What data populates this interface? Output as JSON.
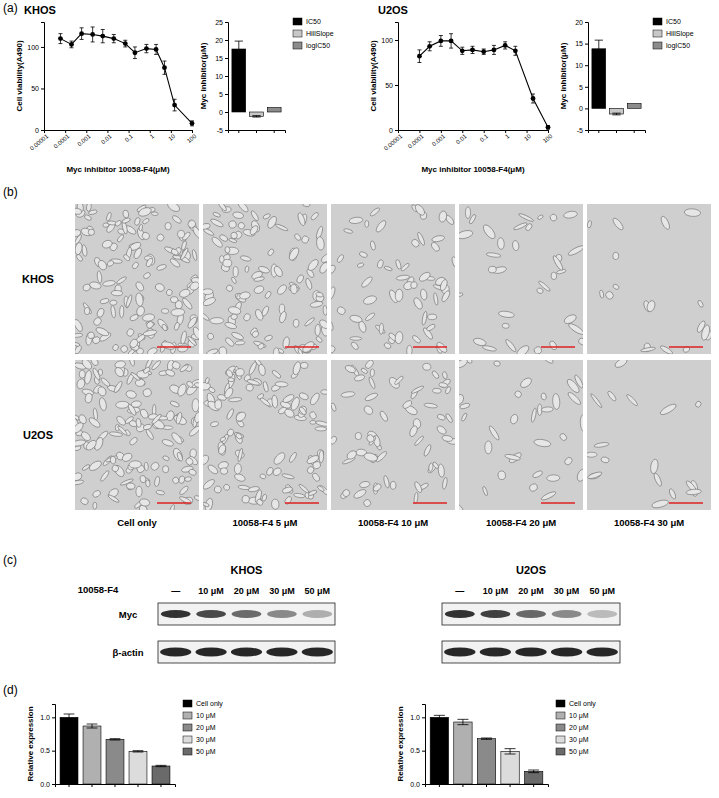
{
  "figure": {
    "panel_labels": [
      "(a)",
      "(b)",
      "(c)",
      "(d)"
    ],
    "micrographs": {
      "rows": [
        "KHOS",
        "U2OS"
      ],
      "columns": [
        "Cell only",
        "10058-F4 5 μM",
        "10058-F4 10 μM",
        "10058-F4 20 μM",
        "10058-F4 30 μM"
      ]
    },
    "blots": {
      "treatment": "10058-F4",
      "lanes": [
        "—",
        "10 μM",
        "20 μM",
        "30 μM",
        "50 μM"
      ],
      "rows": [
        "Myc",
        "β-actin"
      ],
      "cell_lines": [
        "KHOS",
        "U2OS"
      ]
    }
  },
  "chart_data": [
    {
      "type": "line",
      "title": "KHOS",
      "xlabel": "Myc inhibitor 10058-F4(μM)",
      "ylabel": "Cell viability(A490)",
      "log": "x",
      "x": [
        6e-05,
        0.0002,
        0.0006,
        0.002,
        0.006,
        0.02,
        0.07,
        0.2,
        0.7,
        2,
        5,
        15,
        100
      ],
      "values": [
        110,
        103,
        116,
        115,
        113,
        110,
        104,
        93,
        98,
        97,
        75,
        30,
        8
      ],
      "errors": [
        6,
        4,
        7,
        9,
        8,
        5,
        4,
        7,
        5,
        6,
        8,
        7,
        3
      ],
      "xlim": [
        1e-05,
        100
      ],
      "xticks": [
        1e-05,
        0.0001,
        0.001,
        0.01,
        0.1,
        1,
        10,
        100
      ],
      "ylim": [
        0,
        130
      ],
      "yticks": [
        0,
        50,
        100
      ],
      "color": "#000000",
      "marker": "circle"
    },
    {
      "type": "bar",
      "ylabel": "Myc inhibitor(μM)",
      "categories": [
        null,
        null,
        null
      ],
      "series": [
        {
          "name": "IC50",
          "color": "#000000",
          "values": [
            17.5,
            null,
            null
          ],
          "errors": [
            2.2,
            null,
            null
          ]
        },
        {
          "name": "HillSlope",
          "color": "#c8c8c8",
          "values": [
            null,
            -1.2,
            null
          ],
          "errors": [
            null,
            0.2,
            null
          ]
        },
        {
          "name": "logIC50",
          "color": "#8c8c8c",
          "values": [
            null,
            null,
            1.24
          ]
        }
      ],
      "ylim": [
        -5,
        25
      ],
      "yticks": [
        -5,
        0,
        5,
        10,
        15,
        20,
        25
      ],
      "legend": "right"
    },
    {
      "type": "line",
      "title": "U2OS",
      "xlabel": "Myc inhibitor 10058-F4(μM)",
      "ylabel": "Cell viability(A490)",
      "log": "x",
      "x": [
        0.0001,
        0.0003,
        0.001,
        0.003,
        0.01,
        0.03,
        0.1,
        0.3,
        1,
        3,
        20,
        100
      ],
      "values": [
        82,
        93,
        99,
        99,
        88,
        89,
        87,
        89,
        94,
        88,
        35,
        3
      ],
      "errors": [
        7,
        5,
        6,
        8,
        4,
        4,
        3,
        5,
        4,
        5,
        5,
        2
      ],
      "xlim": [
        1e-05,
        100
      ],
      "xticks": [
        1e-05,
        0.0001,
        0.001,
        0.01,
        0.1,
        1,
        10,
        100
      ],
      "ylim": [
        0,
        120
      ],
      "yticks": [
        0,
        50,
        100
      ],
      "color": "#000000",
      "marker": "circle"
    },
    {
      "type": "bar",
      "ylabel": "Myc inhibitor(μM)",
      "categories": [
        null,
        null,
        null
      ],
      "series": [
        {
          "name": "IC50",
          "color": "#000000",
          "values": [
            13.8,
            null,
            null
          ],
          "errors": [
            2.0,
            null,
            null
          ]
        },
        {
          "name": "HillSlope",
          "color": "#c8c8c8",
          "values": [
            null,
            -1.3,
            null
          ],
          "errors": [
            null,
            0.2,
            null
          ]
        },
        {
          "name": "logIC50",
          "color": "#8c8c8c",
          "values": [
            null,
            null,
            1.14
          ]
        }
      ],
      "ylim": [
        -5,
        20
      ],
      "yticks": [
        -5,
        0,
        5,
        10,
        15,
        20
      ],
      "legend": "right"
    },
    {
      "type": "bar",
      "ylabel": "Relative expression",
      "categories": [
        null,
        null,
        null,
        null,
        null
      ],
      "series": [
        {
          "name": "Cell only",
          "color": "#000000",
          "values": [
            1.0,
            null,
            null,
            null,
            null
          ],
          "errors": [
            0.05,
            null,
            null,
            null,
            null
          ]
        },
        {
          "name": "10 μM",
          "color": "#b0b0b0",
          "values": [
            null,
            0.87,
            null,
            null,
            null
          ],
          "errors": [
            null,
            0.03,
            null,
            null,
            null
          ]
        },
        {
          "name": "20 μM",
          "color": "#8a8a8a",
          "values": [
            null,
            null,
            0.67,
            null,
            null
          ],
          "errors": [
            null,
            null,
            0.01,
            null,
            null
          ]
        },
        {
          "name": "30 μM",
          "color": "#dcdcdc",
          "values": [
            null,
            null,
            null,
            0.49,
            null
          ],
          "errors": [
            null,
            null,
            null,
            0.01,
            null
          ]
        },
        {
          "name": "50 μM",
          "color": "#6a6a6a",
          "values": [
            null,
            null,
            null,
            null,
            0.27
          ],
          "errors": [
            null,
            null,
            null,
            null,
            0.01
          ]
        }
      ],
      "ylim": [
        0,
        1.2
      ],
      "yticks": [
        {
          "value": 0,
          "label": "0.0"
        },
        {
          "value": 0.5,
          "label": "0.5"
        },
        {
          "value": 1,
          "label": "1.0"
        }
      ],
      "legend": "right"
    },
    {
      "type": "bar",
      "ylabel": "Relative expression",
      "categories": [
        null,
        null,
        null,
        null,
        null
      ],
      "series": [
        {
          "name": "Cell only",
          "color": "#000000",
          "values": [
            1.0,
            null,
            null,
            null,
            null
          ],
          "errors": [
            0.03,
            null,
            null,
            null,
            null
          ]
        },
        {
          "name": "10 μM",
          "color": "#b0b0b0",
          "values": [
            null,
            0.93,
            null,
            null,
            null
          ],
          "errors": [
            null,
            0.04,
            null,
            null,
            null
          ]
        },
        {
          "name": "20 μM",
          "color": "#8a8a8a",
          "values": [
            null,
            null,
            0.68,
            null,
            null
          ],
          "errors": [
            null,
            null,
            0.01,
            null,
            null
          ]
        },
        {
          "name": "30 μM",
          "color": "#dcdcdc",
          "values": [
            null,
            null,
            null,
            0.49,
            null
          ],
          "errors": [
            null,
            null,
            null,
            0.04,
            null
          ]
        },
        {
          "name": "50 μM",
          "color": "#6a6a6a",
          "values": [
            null,
            null,
            null,
            null,
            0.19
          ],
          "errors": [
            null,
            null,
            null,
            null,
            0.02
          ]
        }
      ],
      "ylim": [
        0,
        1.2
      ],
      "yticks": [
        {
          "value": 0,
          "label": "0.0"
        },
        {
          "value": 0.5,
          "label": "0.5"
        },
        {
          "value": 1,
          "label": "1.0"
        }
      ],
      "legend": "right"
    }
  ]
}
